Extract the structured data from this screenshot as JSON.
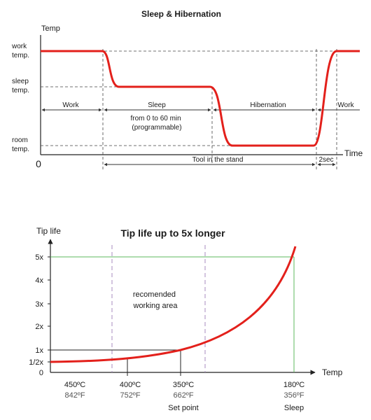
{
  "top_diagram": {
    "title": "Sleep & Hibernation",
    "y_axis_label": "Temp",
    "x_axis_label": "Time",
    "origin_label": "0",
    "levels": {
      "work": [
        "work",
        "temp."
      ],
      "sleep": [
        "sleep",
        "temp."
      ],
      "room": [
        "room",
        "temp."
      ]
    },
    "phases": {
      "work_1": "Work",
      "sleep": "Sleep",
      "sleep_note": [
        "from 0 to 60 min",
        "(programmable)"
      ],
      "hibernation": "Hibernation",
      "work_2": "Work"
    },
    "stand_label": "Tool in the stand",
    "recovery_time": "2sec",
    "colors": {
      "curve": "#e3201b",
      "guides": "#333333"
    }
  },
  "bottom_chart": {
    "title": "Tip life up to 5x longer",
    "y_axis_label": "Tip life",
    "x_axis_label": "Temp",
    "area_label": [
      "recomended",
      "working area"
    ],
    "set_point_label": "Set point",
    "sleep_label": "Sleep",
    "colors": {
      "curve": "#e3201b",
      "green": "#5cb85c",
      "purple": "#a78bbf"
    }
  },
  "chart_data": {
    "type": "line",
    "title": "Tip life up to 5x longer",
    "xlabel": "Temp",
    "ylabel": "Tip life",
    "x_ticks": [
      {
        "c": "450ºC",
        "f": "842ºF"
      },
      {
        "c": "400ºC",
        "f": "752ºF"
      },
      {
        "c": "350ºC",
        "f": "662ºF"
      },
      {
        "c": "180ºC",
        "f": "356ºF"
      }
    ],
    "y_ticks": [
      "0",
      "1/2x",
      "1x",
      "2x",
      "3x",
      "4x",
      "5x"
    ],
    "reference_points": [
      {
        "temp_c": 350,
        "tip_life": "1x",
        "label": "Set point"
      },
      {
        "temp_c": 180,
        "tip_life": "5x",
        "label": "Sleep"
      }
    ]
  }
}
